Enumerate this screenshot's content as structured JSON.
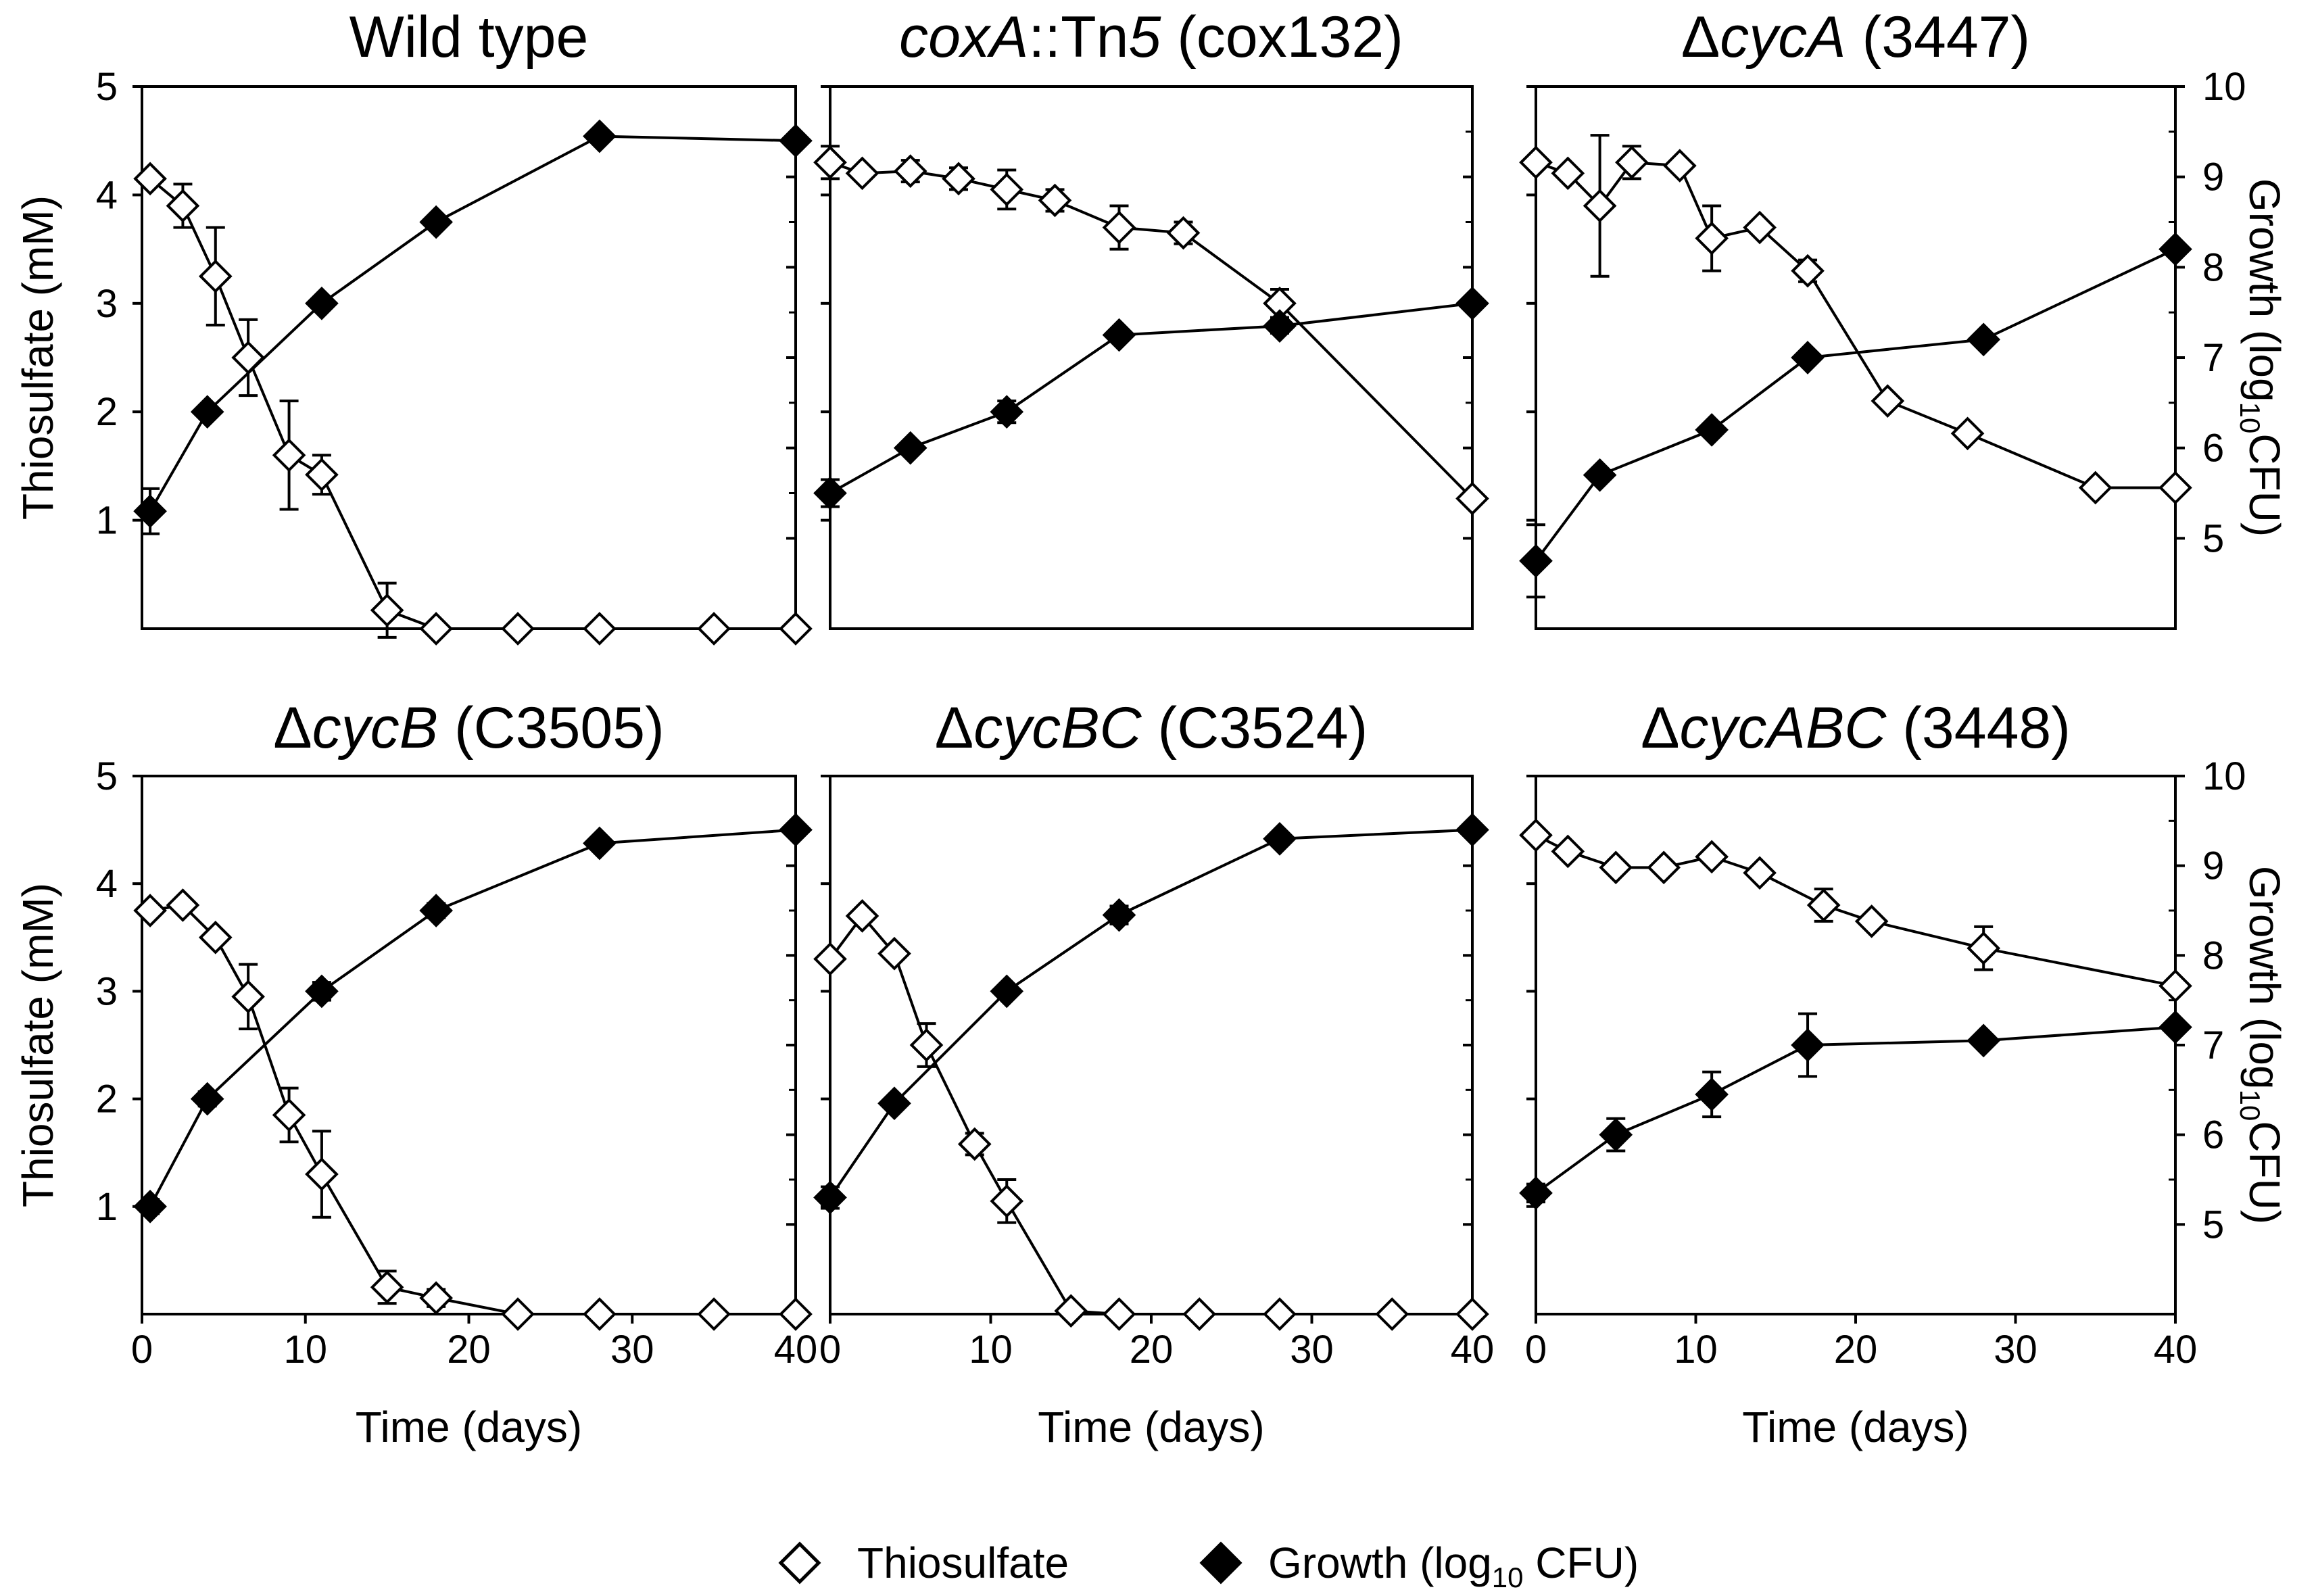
{
  "legend": {
    "thiosulfate_label": "Thiosulfate",
    "growth_label_prefix": "Growth (log",
    "growth_label_sub": "10",
    "growth_label_suffix": " CFU)"
  },
  "axes_text": {
    "xlabel": "Time (days)",
    "ylabel_left": "Thiosulfate (mM)",
    "ylabel_right_prefix": "Growth (log",
    "ylabel_right_sub": "10",
    "ylabel_right_suffix": "CFU)",
    "left_ticks": [
      "1",
      "2",
      "3",
      "4",
      "5"
    ],
    "right_ticks": [
      "5",
      "6",
      "7",
      "8",
      "9",
      "10"
    ],
    "x_ticks": [
      "0",
      "10",
      "20",
      "30",
      "40"
    ]
  },
  "colors": {
    "ink": "#000000",
    "open_fill": "#ffffff",
    "filled": "#000000"
  },
  "chart_data": [
    {
      "type": "line",
      "title_parts": [
        {
          "t": "Wild type",
          "i": false
        }
      ],
      "xlabel": "Time (days)",
      "ylabel_left": "Thiosulfate (mM)",
      "ylabel_right": "Growth (log10CFU)",
      "xlim": [
        0,
        40
      ],
      "ylim_left": [
        0,
        5
      ],
      "ylim_right": [
        4,
        10
      ],
      "series": [
        {
          "name": "Thiosulfate",
          "axis": "left",
          "marker": "open-diamond",
          "x": [
            0.5,
            2.5,
            4.5,
            6.5,
            9,
            11,
            15,
            18,
            23,
            28,
            35,
            40
          ],
          "y": [
            4.15,
            3.9,
            3.25,
            2.5,
            1.6,
            1.42,
            0.17,
            0.0,
            0.0,
            0.0,
            0.0,
            0.0
          ],
          "err": [
            0,
            0.2,
            0.45,
            0.35,
            0.5,
            0.18,
            0.25,
            0,
            0,
            0,
            0,
            0
          ]
        },
        {
          "name": "Growth (log10 CFU)",
          "axis": "right",
          "marker": "filled-diamond",
          "x": [
            0.5,
            4,
            11,
            18,
            28,
            40
          ],
          "y": [
            5.3,
            6.4,
            7.6,
            8.5,
            9.45,
            9.4
          ],
          "err": [
            0.25,
            0,
            0,
            0,
            0,
            0
          ]
        }
      ]
    },
    {
      "type": "line",
      "title_parts": [
        {
          "t": "coxA",
          "i": true
        },
        {
          "t": "::Tn",
          "i": false
        },
        {
          "t": "5",
          "i": true
        },
        {
          "t": " (cox132)",
          "i": false
        }
      ],
      "xlabel": "",
      "ylabel_left": "",
      "ylabel_right": "",
      "xlim": [
        0,
        40
      ],
      "ylim_left": [
        0,
        5
      ],
      "ylim_right": [
        4,
        10
      ],
      "series": [
        {
          "name": "Thiosulfate",
          "axis": "left",
          "marker": "open-diamond",
          "x": [
            0,
            2,
            5,
            8,
            11,
            14,
            18,
            22,
            28,
            40
          ],
          "y": [
            4.3,
            4.2,
            4.22,
            4.15,
            4.05,
            3.95,
            3.7,
            3.65,
            3.0,
            1.2
          ],
          "err": [
            0.15,
            0,
            0.1,
            0.1,
            0.18,
            0.1,
            0.2,
            0.1,
            0.13,
            0
          ]
        },
        {
          "name": "Growth (log10 CFU)",
          "axis": "right",
          "marker": "filled-diamond",
          "x": [
            0,
            5,
            11,
            18,
            28,
            40
          ],
          "y": [
            5.5,
            6.0,
            6.4,
            7.25,
            7.35,
            7.6
          ],
          "err": [
            0.15,
            0,
            0.12,
            0,
            0.08,
            0
          ]
        }
      ]
    },
    {
      "type": "line",
      "title_parts": [
        {
          "t": "Δ",
          "i": false
        },
        {
          "t": "cycA",
          "i": true
        },
        {
          "t": " (3447)",
          "i": false
        }
      ],
      "xlabel": "",
      "ylabel_left": "",
      "ylabel_right": "Growth (log10CFU)",
      "xlim": [
        0,
        40
      ],
      "ylim_left": [
        0,
        5
      ],
      "ylim_right": [
        4,
        10
      ],
      "series": [
        {
          "name": "Thiosulfate",
          "axis": "left",
          "marker": "open-diamond",
          "x": [
            0,
            2,
            4,
            6,
            9,
            11,
            14,
            17,
            22,
            27,
            35,
            40
          ],
          "y": [
            4.3,
            4.2,
            3.9,
            4.3,
            4.27,
            3.6,
            3.7,
            3.3,
            2.1,
            1.8,
            1.3,
            1.3
          ],
          "err": [
            0,
            0,
            0.65,
            0.15,
            0,
            0.3,
            0,
            0.1,
            0,
            0,
            0,
            0
          ]
        },
        {
          "name": "Growth (log10 CFU)",
          "axis": "right",
          "marker": "filled-diamond",
          "x": [
            0,
            4,
            11,
            17,
            28,
            40
          ],
          "y": [
            4.75,
            5.7,
            6.2,
            7.0,
            7.2,
            8.2
          ],
          "err": [
            0.4,
            0,
            0,
            0,
            0,
            0
          ]
        }
      ]
    },
    {
      "type": "line",
      "title_parts": [
        {
          "t": "Δ",
          "i": false
        },
        {
          "t": "cycB",
          "i": true
        },
        {
          "t": " (C3505)",
          "i": false
        }
      ],
      "xlabel": "Time (days)",
      "ylabel_left": "Thiosulfate (mM)",
      "ylabel_right": "",
      "xlim": [
        0,
        40
      ],
      "ylim_left": [
        0,
        5
      ],
      "ylim_right": [
        4,
        10
      ],
      "series": [
        {
          "name": "Thiosulfate",
          "axis": "left",
          "marker": "open-diamond",
          "x": [
            0.5,
            2.5,
            4.5,
            6.5,
            9,
            11,
            15,
            18,
            23,
            28,
            35,
            40
          ],
          "y": [
            3.75,
            3.8,
            3.5,
            2.95,
            1.85,
            1.3,
            0.25,
            0.15,
            0.0,
            0.0,
            0.0,
            0.0
          ],
          "err": [
            0,
            0,
            0,
            0.3,
            0.25,
            0.4,
            0.15,
            0.08,
            0,
            0,
            0,
            0
          ]
        },
        {
          "name": "Growth (log10 CFU)",
          "axis": "right",
          "marker": "filled-diamond",
          "x": [
            0.5,
            4,
            11,
            18,
            28,
            40
          ],
          "y": [
            5.2,
            6.4,
            7.6,
            8.5,
            9.25,
            9.4
          ],
          "err": [
            0.08,
            0.08,
            0.1,
            0.08,
            0,
            0
          ]
        }
      ]
    },
    {
      "type": "line",
      "title_parts": [
        {
          "t": "Δ",
          "i": false
        },
        {
          "t": "cycBC",
          "i": true
        },
        {
          "t": " (C3524)",
          "i": false
        }
      ],
      "xlabel": "Time (days)",
      "ylabel_left": "",
      "ylabel_right": "",
      "xlim": [
        0,
        40
      ],
      "ylim_left": [
        0,
        5
      ],
      "ylim_right": [
        4,
        10
      ],
      "series": [
        {
          "name": "Thiosulfate",
          "axis": "left",
          "marker": "open-diamond",
          "x": [
            0,
            2,
            4,
            6,
            9,
            11,
            15,
            18,
            23,
            28,
            35,
            40
          ],
          "y": [
            3.3,
            3.7,
            3.35,
            2.5,
            1.58,
            1.05,
            0.03,
            0.0,
            0.0,
            0.0,
            0.0,
            0.0
          ],
          "err": [
            0,
            0,
            0,
            0.2,
            0.1,
            0.2,
            0,
            0,
            0,
            0,
            0,
            0
          ]
        },
        {
          "name": "Growth (log10 CFU)",
          "axis": "right",
          "marker": "filled-diamond",
          "x": [
            0,
            4,
            11,
            18,
            28,
            40
          ],
          "y": [
            5.3,
            6.35,
            7.6,
            8.45,
            9.3,
            9.4
          ],
          "err": [
            0.12,
            0,
            0,
            0.1,
            0,
            0
          ]
        }
      ]
    },
    {
      "type": "line",
      "title_parts": [
        {
          "t": "Δ",
          "i": false
        },
        {
          "t": "cycABC",
          "i": true
        },
        {
          "t": " (3448)",
          "i": false
        }
      ],
      "xlabel": "Time (days)",
      "ylabel_left": "",
      "ylabel_right": "Growth (log10CFU)",
      "xlim": [
        0,
        40
      ],
      "ylim_left": [
        0,
        5
      ],
      "ylim_right": [
        4,
        10
      ],
      "series": [
        {
          "name": "Thiosulfate",
          "axis": "left",
          "marker": "open-diamond",
          "x": [
            0,
            2,
            5,
            8,
            11,
            14,
            18,
            21,
            28,
            40
          ],
          "y": [
            4.45,
            4.3,
            4.15,
            4.15,
            4.25,
            4.1,
            3.8,
            3.65,
            3.4,
            3.05
          ],
          "err": [
            0,
            0,
            0,
            0,
            0,
            0,
            0.15,
            0,
            0.2,
            0
          ]
        },
        {
          "name": "Growth (log10 CFU)",
          "axis": "right",
          "marker": "filled-diamond",
          "x": [
            0,
            5,
            11,
            17,
            28,
            40
          ],
          "y": [
            5.35,
            6.0,
            6.45,
            7.0,
            7.05,
            7.2
          ],
          "err": [
            0.1,
            0.18,
            0.25,
            0.35,
            0,
            0
          ]
        }
      ]
    }
  ]
}
